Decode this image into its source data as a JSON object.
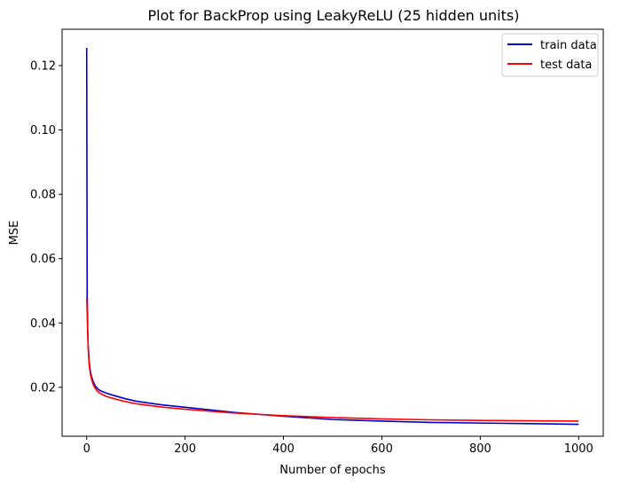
{
  "chart_data": {
    "type": "line",
    "title": "Plot for BackProp using LeakyReLU (25 hidden units)",
    "xlabel": "Number of epochs",
    "ylabel": "MSE",
    "xlim": [
      -50,
      1050
    ],
    "ylim": [
      0.0048,
      0.1313
    ],
    "xticks": [
      0,
      200,
      400,
      600,
      800,
      1000
    ],
    "yticks": [
      0.02,
      0.04,
      0.06,
      0.08,
      0.1,
      0.12
    ],
    "ytick_labels": [
      "0.02",
      "0.04",
      "0.06",
      "0.08",
      "0.10",
      "0.12"
    ],
    "grid": false,
    "legend_position": "top-right",
    "series": [
      {
        "name": "train data",
        "color": "#0000cc",
        "x": [
          0,
          1,
          2,
          3,
          5,
          8,
          12,
          16,
          20,
          25,
          30,
          40,
          50,
          75,
          100,
          150,
          200,
          300,
          400,
          500,
          600,
          700,
          800,
          900,
          1000
        ],
        "y": [
          0.1255,
          0.048,
          0.038,
          0.033,
          0.028,
          0.0245,
          0.0222,
          0.0208,
          0.0199,
          0.0192,
          0.0188,
          0.0182,
          0.0177,
          0.0166,
          0.0157,
          0.0146,
          0.0138,
          0.0122,
          0.011,
          0.01,
          0.0095,
          0.0091,
          0.0089,
          0.0087,
          0.0085
        ]
      },
      {
        "name": "test data",
        "color": "#ff0000",
        "x": [
          0,
          1,
          2,
          3,
          5,
          8,
          12,
          16,
          20,
          25,
          30,
          40,
          50,
          75,
          100,
          150,
          200,
          300,
          400,
          500,
          600,
          700,
          800,
          900,
          1000
        ],
        "y": [
          0.048,
          0.043,
          0.037,
          0.032,
          0.027,
          0.0237,
          0.0214,
          0.02,
          0.0191,
          0.0184,
          0.0179,
          0.0172,
          0.0167,
          0.0157,
          0.0149,
          0.0139,
          0.0132,
          0.012,
          0.0112,
          0.0106,
          0.0102,
          0.0099,
          0.0097,
          0.0096,
          0.0095
        ]
      }
    ]
  }
}
